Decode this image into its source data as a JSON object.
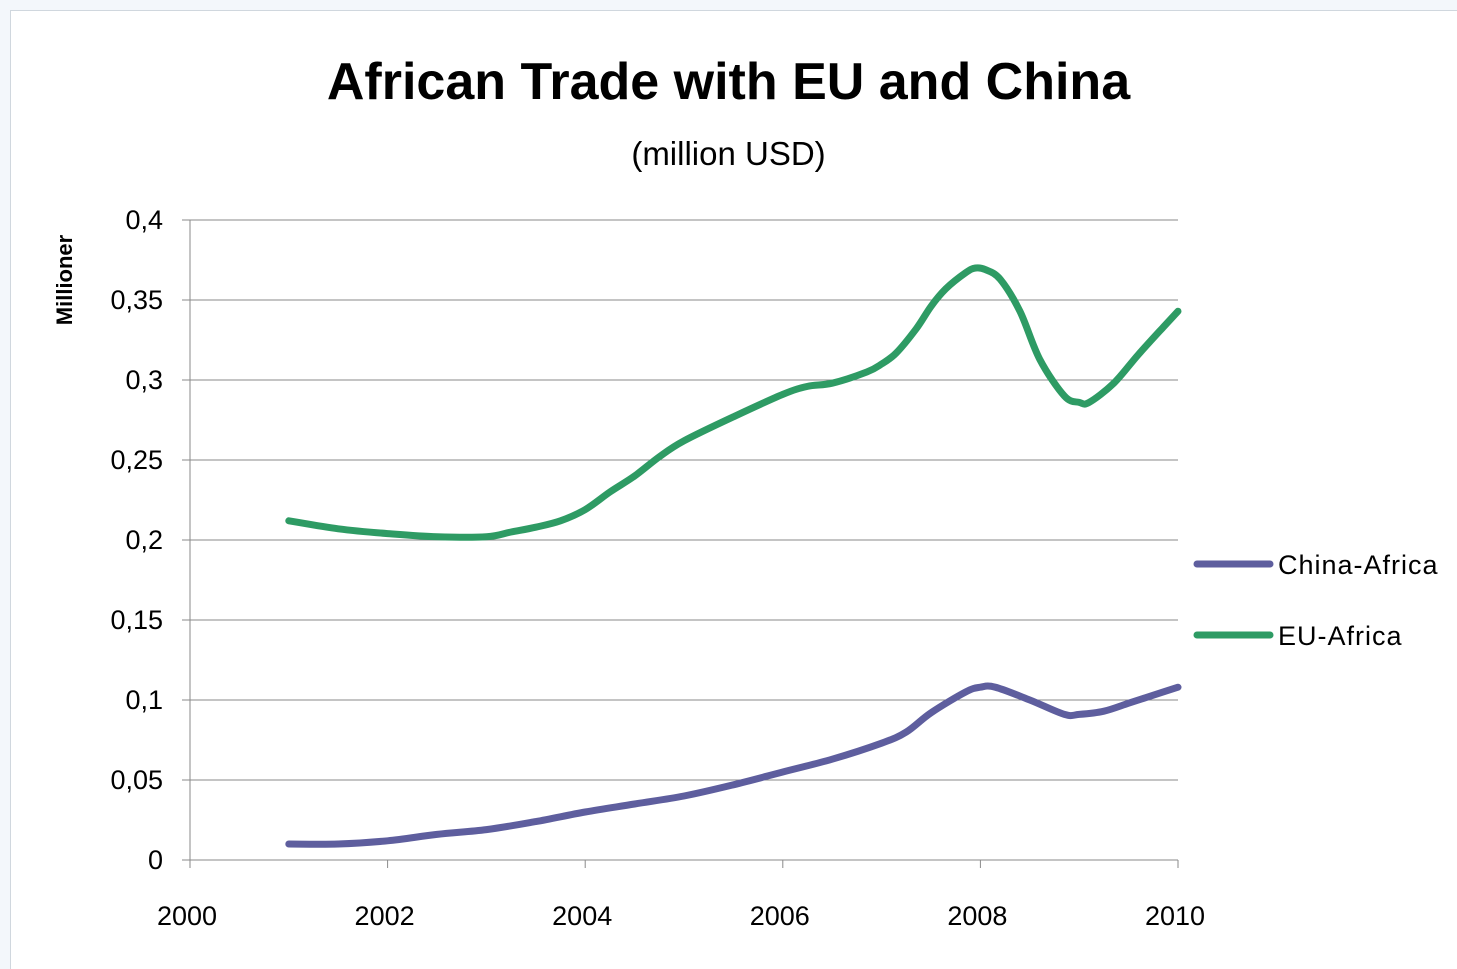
{
  "chart_data": {
    "type": "line",
    "title": "African Trade with EU and China",
    "subtitle": "(million USD)",
    "ylabel": "Millioner",
    "xlabel": "",
    "xlim": [
      2000,
      2010
    ],
    "ylim": [
      0,
      0.4
    ],
    "x_ticks": [
      2000,
      2002,
      2004,
      2006,
      2008,
      2010
    ],
    "x_tick_labels": [
      "2000",
      "2002",
      "2004",
      "2006",
      "2008",
      "2010"
    ],
    "y_ticks": [
      0,
      0.05,
      0.1,
      0.15,
      0.2,
      0.25,
      0.3,
      0.35,
      0.4
    ],
    "y_tick_labels": [
      "0",
      "0,05",
      "0,1",
      "0,15",
      "0,2",
      "0,25",
      "0,3",
      "0,35",
      "0,4"
    ],
    "grid": "horizontal",
    "legend_position": "right",
    "series": [
      {
        "name": "China-Africa",
        "color": "#5e5e9e",
        "x": [
          2001,
          2001.5,
          2002,
          2002.5,
          2003,
          2003.5,
          2004,
          2004.5,
          2005,
          2005.5,
          2006,
          2006.5,
          2007,
          2007.25,
          2007.5,
          2007.85,
          2008,
          2008.15,
          2008.5,
          2008.85,
          2009,
          2009.25,
          2009.5,
          2009.75,
          2010
        ],
        "y": [
          0.01,
          0.01,
          0.012,
          0.016,
          0.019,
          0.024,
          0.03,
          0.035,
          0.04,
          0.047,
          0.055,
          0.063,
          0.073,
          0.08,
          0.092,
          0.105,
          0.108,
          0.108,
          0.1,
          0.091,
          0.091,
          0.093,
          0.098,
          0.103,
          0.108
        ]
      },
      {
        "name": "EU-Africa",
        "color": "#2e9b64",
        "x": [
          2001,
          2001.5,
          2002,
          2002.5,
          2003,
          2003.25,
          2003.5,
          2003.75,
          2004,
          2004.25,
          2004.5,
          2004.75,
          2005,
          2005.5,
          2006,
          2006.25,
          2006.5,
          2006.85,
          2007,
          2007.15,
          2007.35,
          2007.5,
          2007.65,
          2007.85,
          2007.95,
          2008.05,
          2008.2,
          2008.4,
          2008.6,
          2008.85,
          2009,
          2009.1,
          2009.35,
          2009.6,
          2009.85,
          2010
        ],
        "y": [
          0.212,
          0.207,
          0.204,
          0.202,
          0.202,
          0.205,
          0.208,
          0.212,
          0.219,
          0.23,
          0.24,
          0.252,
          0.262,
          0.277,
          0.291,
          0.296,
          0.298,
          0.305,
          0.31,
          0.317,
          0.332,
          0.346,
          0.357,
          0.367,
          0.37,
          0.369,
          0.363,
          0.343,
          0.313,
          0.29,
          0.286,
          0.286,
          0.298,
          0.316,
          0.333,
          0.343
        ]
      }
    ]
  }
}
